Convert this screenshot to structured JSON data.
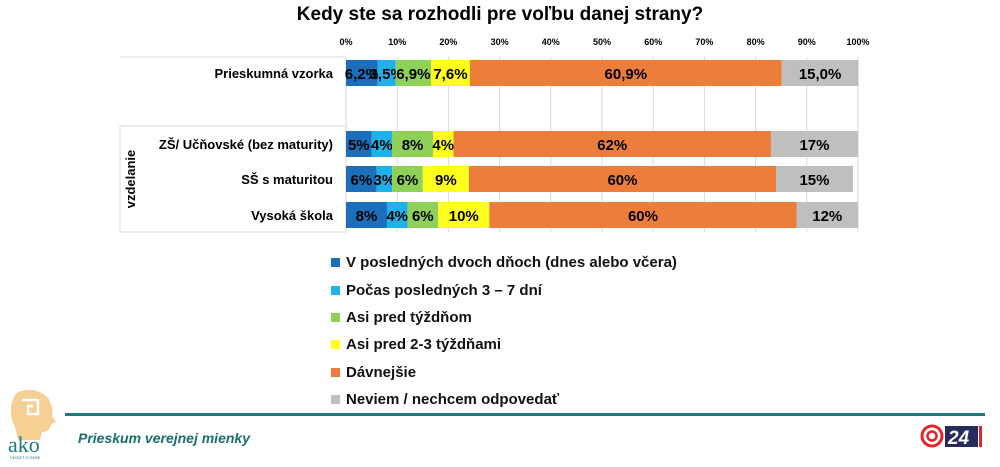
{
  "chart_data": {
    "type": "bar",
    "orientation": "horizontal",
    "stacked": "100%",
    "title": "Kedy ste sa rozhodli pre voľbu danej strany?",
    "xlim": [
      0,
      100
    ],
    "xticks": [
      "0%",
      "10%",
      "20%",
      "30%",
      "40%",
      "50%",
      "60%",
      "70%",
      "80%",
      "90%",
      "100%"
    ],
    "grid": true,
    "legend_position": "bottom",
    "group_label": "vzdelanie",
    "categories": [
      "Prieskumná vzorka",
      "",
      "ZŠ/ Učňovské (bez maturity)",
      "SŠ s maturitou",
      "Vysoká škola"
    ],
    "series": [
      {
        "name": "V posledných dvoch dňoch (dnes alebo včera)",
        "color": "#1b6fba",
        "values": [
          6.2,
          null,
          5,
          6,
          8
        ],
        "labels": [
          "6,2%",
          "",
          "5%",
          "6%",
          "8%"
        ]
      },
      {
        "name": "Počas posledných 3 – 7 dní",
        "color": "#1eb1ea",
        "values": [
          3.5,
          null,
          4,
          3,
          4
        ],
        "labels": [
          "3,5%",
          "",
          "4%",
          "3%",
          "4%"
        ]
      },
      {
        "name": "Asi pred týždňom",
        "color": "#8fd058",
        "values": [
          6.9,
          null,
          8,
          6,
          6
        ],
        "labels": [
          "6,9%",
          "",
          "8%",
          "6%",
          "6%"
        ]
      },
      {
        "name": "Asi pred 2-3 týždňami",
        "color": "#ffff1e",
        "values": [
          7.6,
          null,
          4,
          9,
          10
        ],
        "labels": [
          "7,6%",
          "",
          "4%",
          "9%",
          "10%"
        ]
      },
      {
        "name": "Dávnejšie",
        "color": "#ed7d3a",
        "values": [
          60.9,
          null,
          62,
          60,
          60
        ],
        "labels": [
          "60,9%",
          "",
          "62%",
          "60%",
          "60%"
        ]
      },
      {
        "name": "Neviem / nechcem odpovedať",
        "color": "#bfbfbf",
        "values": [
          15.0,
          null,
          17,
          15,
          12
        ],
        "labels": [
          "15,0%",
          "",
          "17%",
          "15%",
          "12%"
        ]
      }
    ]
  },
  "footer": {
    "text": "Prieskum verejnej mienky",
    "accent": "#1a7b7b"
  },
  "logos": {
    "left": "ako VEDIEŤ O SEBE",
    "right": "ČT24"
  }
}
